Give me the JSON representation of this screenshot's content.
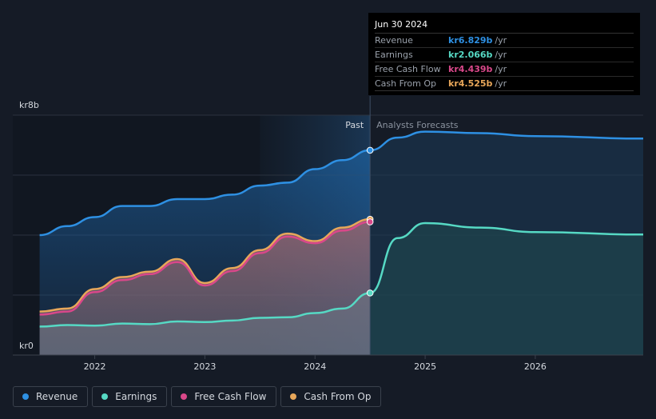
{
  "tooltip": {
    "date": "Jun 30 2024",
    "rows": [
      {
        "label": "Revenue",
        "value": "kr6.829b",
        "unit": "/yr",
        "color": "#2e90e3"
      },
      {
        "label": "Earnings",
        "value": "kr2.066b",
        "unit": "/yr",
        "color": "#56d9c4"
      },
      {
        "label": "Free Cash Flow",
        "value": "kr4.439b",
        "unit": "/yr",
        "color": "#d9488a"
      },
      {
        "label": "Cash From Op",
        "value": "kr4.525b",
        "unit": "/yr",
        "color": "#e8a75a"
      }
    ]
  },
  "legend": [
    {
      "label": "Revenue",
      "color": "#2e90e3"
    },
    {
      "label": "Earnings",
      "color": "#56d9c4"
    },
    {
      "label": "Free Cash Flow",
      "color": "#d9488a"
    },
    {
      "label": "Cash From Op",
      "color": "#e8a75a"
    }
  ],
  "chart_data": {
    "type": "line",
    "y_label_top": "kr8b",
    "y_label_bottom": "kr0",
    "ylim": [
      0,
      8
    ],
    "xlim": [
      2021.43,
      2026.98
    ],
    "divider_x": 2024.5,
    "highlight_start": 2023.5,
    "past_label": "Past",
    "forecast_label": "Analysts Forecasts",
    "x_ticks": [
      {
        "value": 2022,
        "label": "2022"
      },
      {
        "value": 2023,
        "label": "2023"
      },
      {
        "value": 2024,
        "label": "2024"
      },
      {
        "value": 2025,
        "label": "2025"
      },
      {
        "value": 2026,
        "label": "2026"
      }
    ],
    "grid": true,
    "series": [
      {
        "name": "Revenue",
        "color": "#2e90e3",
        "past": [
          [
            2021.5,
            4.0
          ],
          [
            2021.75,
            4.3
          ],
          [
            2022.0,
            4.6
          ],
          [
            2022.25,
            4.97
          ],
          [
            2022.5,
            4.97
          ],
          [
            2022.75,
            5.2
          ],
          [
            2023.0,
            5.2
          ],
          [
            2023.25,
            5.35
          ],
          [
            2023.5,
            5.65
          ],
          [
            2023.75,
            5.75
          ],
          [
            2024.0,
            6.2
          ],
          [
            2024.25,
            6.5
          ],
          [
            2024.5,
            6.83
          ]
        ],
        "forecast": [
          [
            2024.5,
            6.83
          ],
          [
            2024.75,
            7.25
          ],
          [
            2025.0,
            7.45
          ],
          [
            2025.5,
            7.4
          ],
          [
            2026.0,
            7.3
          ],
          [
            2026.98,
            7.22
          ]
        ]
      },
      {
        "name": "Earnings",
        "color": "#56d9c4",
        "past": [
          [
            2021.5,
            0.95
          ],
          [
            2021.75,
            1.0
          ],
          [
            2022.0,
            0.98
          ],
          [
            2022.25,
            1.05
          ],
          [
            2022.5,
            1.03
          ],
          [
            2022.75,
            1.12
          ],
          [
            2023.0,
            1.1
          ],
          [
            2023.25,
            1.15
          ],
          [
            2023.5,
            1.24
          ],
          [
            2023.75,
            1.26
          ],
          [
            2024.0,
            1.4
          ],
          [
            2024.25,
            1.55
          ],
          [
            2024.5,
            2.07
          ]
        ],
        "forecast": [
          [
            2024.5,
            2.07
          ],
          [
            2024.75,
            3.9
          ],
          [
            2025.0,
            4.4
          ],
          [
            2025.5,
            4.25
          ],
          [
            2026.0,
            4.1
          ],
          [
            2026.98,
            4.02
          ]
        ]
      },
      {
        "name": "Free Cash Flow",
        "color": "#d9488a",
        "past": [
          [
            2021.5,
            1.35
          ],
          [
            2021.75,
            1.45
          ],
          [
            2022.0,
            2.1
          ],
          [
            2022.25,
            2.5
          ],
          [
            2022.5,
            2.7
          ],
          [
            2022.75,
            3.1
          ],
          [
            2023.0,
            2.32
          ],
          [
            2023.25,
            2.8
          ],
          [
            2023.5,
            3.4
          ],
          [
            2023.75,
            3.95
          ],
          [
            2024.0,
            3.73
          ],
          [
            2024.25,
            4.15
          ],
          [
            2024.5,
            4.44
          ]
        ],
        "forecast": []
      },
      {
        "name": "Cash From Op",
        "color": "#e8a75a",
        "past": [
          [
            2021.5,
            1.45
          ],
          [
            2021.75,
            1.55
          ],
          [
            2022.0,
            2.2
          ],
          [
            2022.25,
            2.6
          ],
          [
            2022.5,
            2.78
          ],
          [
            2022.75,
            3.2
          ],
          [
            2023.0,
            2.4
          ],
          [
            2023.25,
            2.9
          ],
          [
            2023.5,
            3.5
          ],
          [
            2023.75,
            4.05
          ],
          [
            2024.0,
            3.8
          ],
          [
            2024.25,
            4.25
          ],
          [
            2024.5,
            4.53
          ]
        ],
        "forecast": []
      }
    ]
  }
}
